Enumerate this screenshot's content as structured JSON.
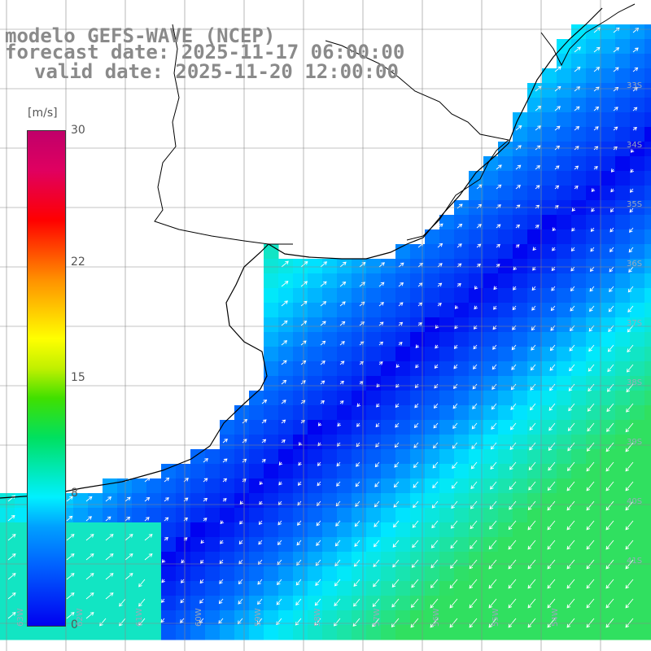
{
  "title": {
    "line1": "modelo GEFS-WAVE (NCEP)",
    "line2": "forecast date: 2025-11-17 06:00:00",
    "line3": "valid date: 2025-11-20 12:00:00"
  },
  "colorbar": {
    "unit": "[m/s]",
    "ticks": [
      {
        "label": "30",
        "value": 30
      },
      {
        "label": "22",
        "value": 22
      },
      {
        "label": "15",
        "value": 15
      },
      {
        "label": "8",
        "value": 8
      },
      {
        "label": "0",
        "value": 0
      }
    ]
  },
  "lat_labels": [
    "33S",
    "34S",
    "35S",
    "36S",
    "37S",
    "38S",
    "39S",
    "40S",
    "41S"
  ],
  "lon_labels": [
    "63W",
    "62W",
    "61W",
    "60W",
    "59W",
    "58W",
    "57W",
    "56W",
    "55W",
    "54W"
  ],
  "colors": {
    "low": "#0000f0",
    "mid": "#00e8ff",
    "high": "#30e060",
    "land": "#ffffff",
    "coast": "#000000",
    "grid": "#888888",
    "arrow": "#ffffff"
  }
}
